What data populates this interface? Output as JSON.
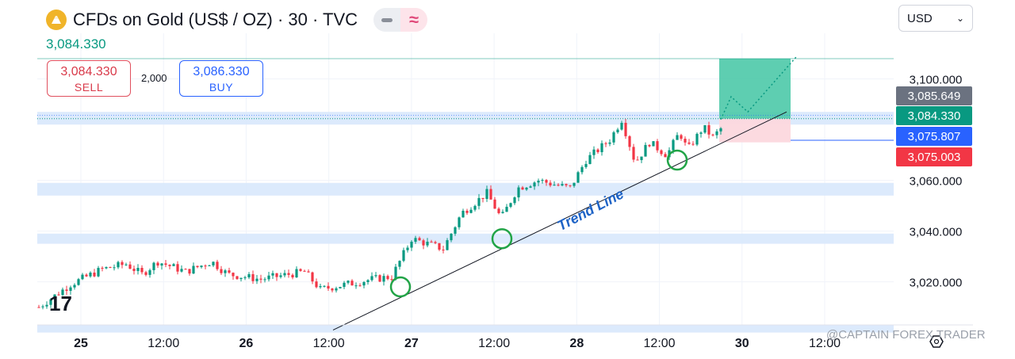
{
  "header": {
    "title": "CFDs on Gold (US$ / OZ) · 30 · TVC",
    "pill_symbol": "≈",
    "current_price": "3,084.330"
  },
  "trade": {
    "sell_price": "3,084.330",
    "sell_label": "SELL",
    "quantity": "2,000",
    "buy_price": "3,086.330",
    "buy_label": "BUY"
  },
  "currency": {
    "value": "USD"
  },
  "watermark": "@CAPTAIN FOREX TRADER",
  "colors": {
    "up": "#089981",
    "down": "#f23645",
    "trend": "#1e63c6",
    "zone": "#d6e6fb",
    "target": "#4cc9a8",
    "stop": "#fcd8de"
  },
  "chart_data": {
    "type": "candlestick",
    "x_ticks": [
      "25",
      "12:00",
      "26",
      "12:00",
      "27",
      "12:00",
      "28",
      "12:00",
      "30",
      "12:00"
    ],
    "y_ticks": [
      "3,100.000",
      "3,060.000",
      "3,040.000",
      "3,020.000"
    ],
    "y_range": [
      3003,
      3118
    ],
    "price_labels": [
      {
        "text": "3,085.649",
        "value": 3085.649,
        "color": "#6b7280"
      },
      {
        "text": "3,084.330",
        "value": 3084.33,
        "color": "#089981"
      },
      {
        "text": "3,075.807",
        "value": 3075.807,
        "color": "#2962ff"
      },
      {
        "text": "3,075.003",
        "value": 3075.003,
        "color": "#f23645"
      }
    ],
    "trend_line_label": "Trend Line",
    "anchors": [
      [
        0,
        3010
      ],
      [
        40,
        3019
      ],
      [
        80,
        3025
      ],
      [
        110,
        3027
      ],
      [
        130,
        3023
      ],
      [
        150,
        3028
      ],
      [
        185,
        3024
      ],
      [
        218,
        3028
      ],
      [
        238,
        3023
      ],
      [
        280,
        3021
      ],
      [
        335,
        3024
      ],
      [
        355,
        3017
      ],
      [
        420,
        3021
      ],
      [
        445,
        3022
      ],
      [
        470,
        3037
      ],
      [
        510,
        3033
      ],
      [
        533,
        3047
      ],
      [
        565,
        3055
      ],
      [
        583,
        3045
      ],
      [
        604,
        3057
      ],
      [
        630,
        3060
      ],
      [
        655,
        3058
      ],
      [
        670,
        3057
      ],
      [
        690,
        3068
      ],
      [
        720,
        3076
      ],
      [
        735,
        3084
      ],
      [
        752,
        3067
      ],
      [
        770,
        3075
      ],
      [
        792,
        3070
      ],
      [
        808,
        3079
      ],
      [
        818,
        3072
      ],
      [
        838,
        3081
      ],
      [
        850,
        3077
      ],
      [
        862,
        3081
      ]
    ],
    "touch_points": [
      [
        458,
        3018
      ],
      [
        586,
        3037
      ],
      [
        807,
        3068
      ]
    ],
    "zones": [
      [
        3082,
        3087
      ],
      [
        3054,
        3059
      ],
      [
        3035,
        3039
      ],
      [
        3000,
        3003
      ]
    ],
    "target_zone": [
      3084.33,
      3108
    ],
    "stop_zone": [
      3075,
      3084.33
    ],
    "projection": [
      [
        862,
        3084
      ],
      [
        875,
        3093
      ],
      [
        896,
        3087
      ],
      [
        958,
        3109
      ]
    ]
  }
}
